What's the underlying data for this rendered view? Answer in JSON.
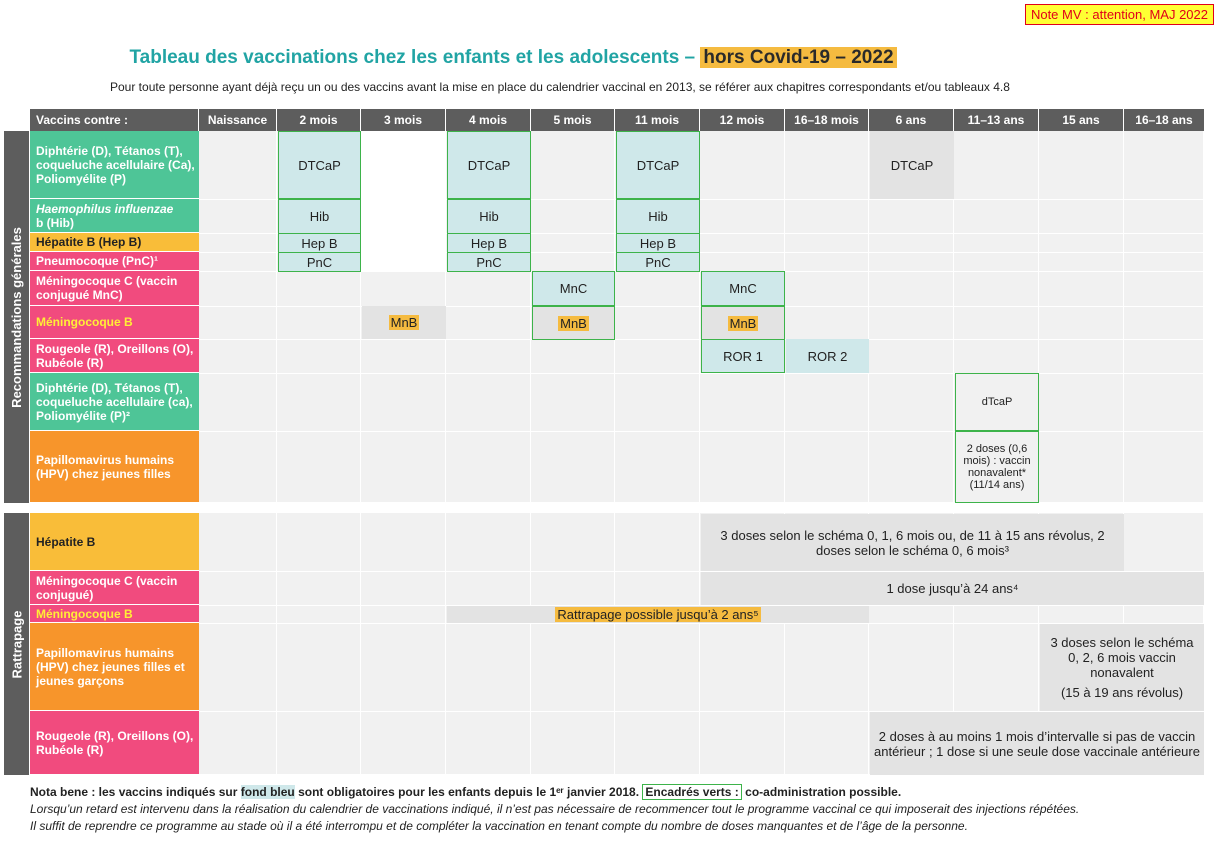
{
  "note_mv": "Note MV : attention, MAJ 2022",
  "title": {
    "main": "Tableau des vaccinations chez les enfants et les adolescents –",
    "highlight": "hors Covid-19 – 2022"
  },
  "subtitle": "Pour toute personne ayant déjà reçu un ou des vaccins avant la mise en place du calendrier vaccinal en 2013, se référer aux chapitres correspondants et/ou tableaux 4.8",
  "table": {
    "header_first": "Vaccins contre :",
    "columns": [
      "Naissance",
      "2 mois",
      "3 mois",
      "4 mois",
      "5 mois",
      "11 mois",
      "12 mois",
      "16–18 mois",
      "6 ans",
      "11–13 ans",
      "15 ans",
      "16–18 ans"
    ],
    "side_recommandations": "Recommandations générales",
    "side_rattrapage": "Rattrapage",
    "rows": [
      "Diphtérie (D), Tétanos (T), coqueluche acellulaire (Ca), Poliomyélite (P)",
      "Haemophilus influenzae b (Hib)",
      "Hépatite B (Hep B)",
      "Pneumocoque (PnC)¹",
      "Méningocoque C (vaccin conjugué MnC)",
      "Méningocoque B",
      "Rougeole (R), Oreillons (O), Rubéole (R)",
      "Diphtérie (D), Tétanos (T), coqueluche acellulaire (ca), Poliomyélite (P)²",
      "Papillomavirus humains (HPV) chez jeunes filles"
    ],
    "rattrapage_rows": [
      "Hépatite B",
      "Méningocoque C (vaccin conjugué)",
      "Méningocoque B",
      "Papillomavirus humains (HPV) chez jeunes filles et jeunes garçons",
      "Rougeole (R), Oreillons (O), Rubéole (R)"
    ],
    "doses": {
      "dtcap": "DTCaP",
      "hib": "Hib",
      "hepb": "Hep B",
      "pnc": "PnC",
      "mnc": "MnC",
      "mnb": "MnB",
      "ror1": "ROR 1",
      "ror2": "ROR 2",
      "dtcap_low": "dTcaP",
      "hpv_girls": "2 doses (0,6 mois) : vaccin nonavalent* (11/14 ans)"
    },
    "rattrapage": {
      "hepb": "3 doses selon le schéma 0, 1, 6 mois ou, de 11 à 15 ans révolus, 2 doses selon le schéma 0, 6 mois³",
      "mnc": "1 dose jusqu’à 24 ans⁴",
      "mnb": "Rattrapage possible jusqu’à 2 ans⁵",
      "hpv_a": "3 doses selon le schéma 0, 2, 6 mois vaccin nonavalent",
      "hpv_b": "(15 à 19 ans révolus)",
      "ror": "2 doses à au moins 1 mois d’intervalle si pas de vaccin antérieur ; 1 dose si une seule dose vaccinale antérieure"
    }
  },
  "footer": {
    "nota_a": "Nota bene : les vaccins indiqués sur",
    "nota_fond_bleu": "fond bleu",
    "nota_b": "sont obligatoires pour les enfants depuis le 1ᵉʳ janvier 2018.",
    "nota_encadres": "Encadrés verts :",
    "nota_c": "co-administration possible.",
    "line2": "Lorsqu’un retard est intervenu dans la réalisation du calendrier de vaccinations indiqué, il n’est pas nécessaire de recommencer tout le programme vaccinal ce qui imposerait des injections répétées.",
    "line3": "Il suffit de reprendre ce programme au stade où il a été interrompu et de compléter la vaccination en tenant compte du nombre de doses manquantes et de l’âge de la personne."
  }
}
